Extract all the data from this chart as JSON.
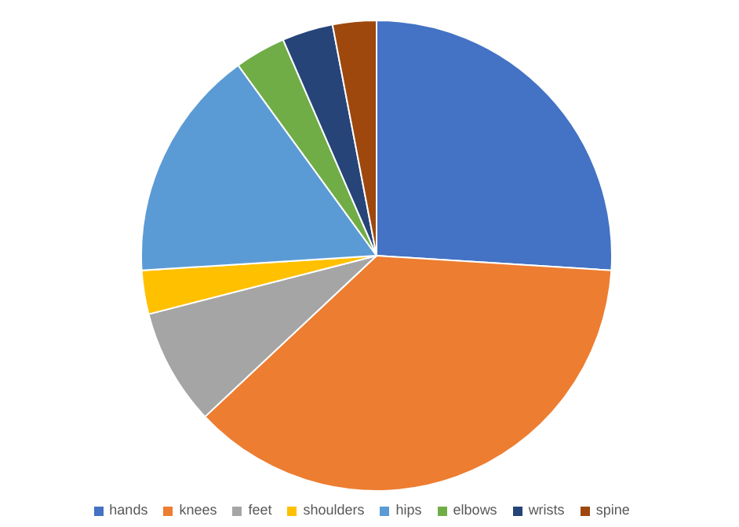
{
  "chart_data": {
    "type": "pie",
    "categories": [
      "hands",
      "knees",
      "feet",
      "shoulders",
      "hips",
      "elbows",
      "wrists",
      "spine"
    ],
    "values": [
      26,
      37,
      8,
      3,
      16,
      3.5,
      3.5,
      3
    ],
    "colors": [
      "#4472c4",
      "#ed7d31",
      "#a5a5a5",
      "#ffc000",
      "#5b9bd5",
      "#70ad47",
      "#264478",
      "#9e480e"
    ],
    "legend": "bottom"
  }
}
